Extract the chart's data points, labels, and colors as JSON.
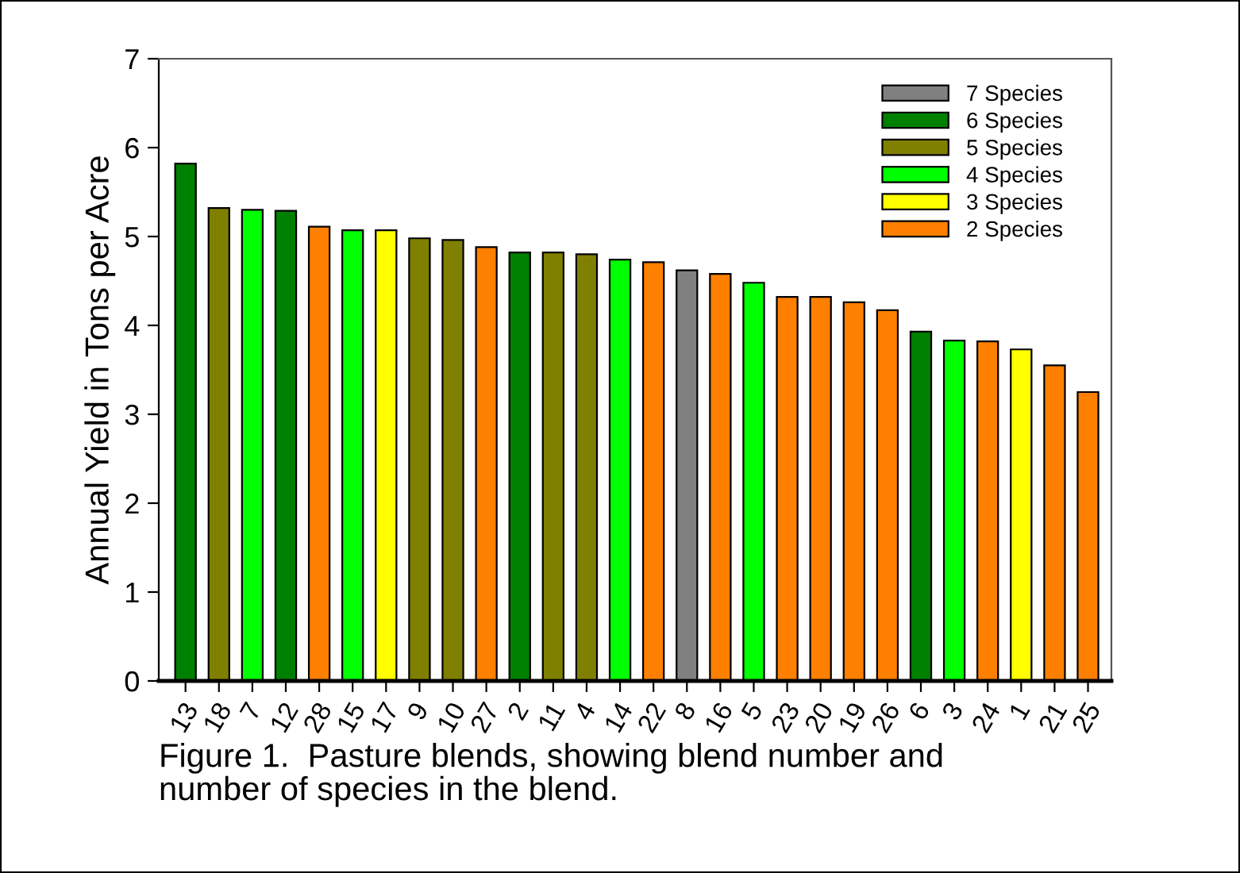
{
  "chart_data": {
    "type": "bar",
    "ylabel": "Annual Yield in Tons per Acre",
    "categories": [
      "13",
      "18",
      "7",
      "12",
      "28",
      "15",
      "17",
      "9",
      "10",
      "27",
      "2",
      "11",
      "4",
      "14",
      "22",
      "8",
      "16",
      "5",
      "23",
      "20",
      "19",
      "26",
      "6",
      "3",
      "24",
      "1",
      "21",
      "25"
    ],
    "series": [
      {
        "name": "7 Species",
        "color": "#808080",
        "values": [
          null,
          null,
          null,
          null,
          null,
          null,
          null,
          null,
          null,
          null,
          null,
          null,
          null,
          null,
          null,
          4.62,
          null,
          null,
          null,
          null,
          null,
          null,
          null,
          null,
          null,
          null,
          null,
          null
        ]
      },
      {
        "name": "6 Species",
        "color": "#008000",
        "values": [
          5.82,
          null,
          null,
          5.29,
          null,
          null,
          null,
          null,
          null,
          null,
          4.82,
          null,
          null,
          null,
          null,
          null,
          null,
          null,
          null,
          null,
          null,
          null,
          3.93,
          null,
          null,
          null,
          null,
          null
        ]
      },
      {
        "name": "5 Species",
        "color": "#808000",
        "values": [
          null,
          5.32,
          null,
          null,
          null,
          null,
          null,
          4.98,
          4.96,
          null,
          null,
          4.82,
          4.8,
          null,
          null,
          null,
          null,
          null,
          null,
          null,
          null,
          null,
          null,
          null,
          null,
          null,
          null,
          null
        ]
      },
      {
        "name": "4 Species",
        "color": "#00ff00",
        "values": [
          null,
          null,
          5.3,
          null,
          null,
          5.07,
          null,
          null,
          null,
          null,
          null,
          null,
          null,
          4.74,
          null,
          null,
          null,
          4.48,
          null,
          null,
          null,
          null,
          null,
          3.83,
          null,
          null,
          null,
          null
        ]
      },
      {
        "name": "3 Species",
        "color": "#ffff00",
        "values": [
          null,
          null,
          null,
          null,
          null,
          null,
          5.07,
          null,
          null,
          null,
          null,
          null,
          null,
          null,
          null,
          null,
          null,
          null,
          null,
          null,
          null,
          null,
          null,
          null,
          null,
          3.73,
          null,
          null
        ]
      },
      {
        "name": "2 Species",
        "color": "#ff8000",
        "values": [
          null,
          null,
          null,
          null,
          5.11,
          null,
          null,
          null,
          null,
          4.88,
          null,
          null,
          null,
          null,
          4.71,
          null,
          4.58,
          null,
          4.32,
          4.32,
          4.26,
          4.17,
          null,
          null,
          3.82,
          null,
          3.55,
          3.25
        ]
      }
    ],
    "ylim": [
      0,
      7
    ],
    "yticks": [
      0,
      1,
      2,
      3,
      4,
      5,
      6,
      7
    ],
    "grid": false,
    "legend": "top right",
    "annotations": [
      "Figure 1.  Pasture blends, showing blend number and\nnumber of species in the blend."
    ]
  }
}
